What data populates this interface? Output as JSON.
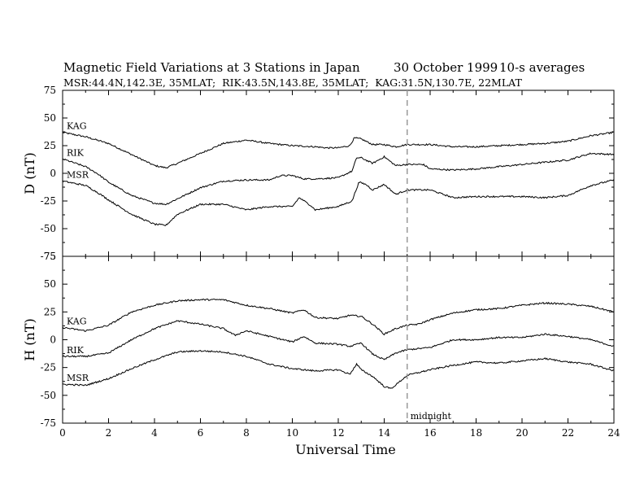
{
  "chart_data": [
    {
      "type": "line",
      "panel": "D",
      "title": "Magnetic Field Variations at 3 Stations in Japan",
      "date": "30 October 1999",
      "averaging": "10-s averages",
      "subtitle": "MSR:44.4N,142.3E, 35MLAT;  RIK:43.5N,143.8E, 35MLAT;  KAG:31.5N,130.7E, 22MLAT",
      "ylabel": "D (nT)",
      "xlabel": "",
      "ylim": [
        -75,
        75
      ],
      "xlim": [
        0,
        24
      ],
      "yticks": [
        "75",
        "50",
        "25",
        "0",
        "-25",
        "-50",
        "-75"
      ],
      "yticks_values": [
        75,
        50,
        25,
        0,
        -25,
        -50,
        -75
      ],
      "series": [
        {
          "name": "KAG",
          "x": [
            0,
            1,
            1.5,
            2,
            3,
            4,
            4.5,
            5,
            6,
            7,
            8,
            9,
            10,
            11,
            11.5,
            12,
            12.5,
            12.7,
            13,
            13.5,
            14,
            14.5,
            15,
            16,
            17,
            18,
            19,
            20,
            21,
            22,
            23,
            24
          ],
          "y": [
            37,
            33,
            30,
            27,
            17,
            7,
            5,
            9,
            18,
            27,
            30,
            27,
            25,
            24,
            23,
            23,
            25,
            32,
            31,
            26,
            26,
            24,
            26,
            26,
            24,
            24,
            25,
            26,
            27,
            29,
            34,
            37
          ]
        },
        {
          "name": "RIK",
          "x": [
            0,
            1,
            1.5,
            2,
            3,
            4,
            4.5,
            5,
            6,
            7,
            8,
            9,
            9.5,
            10,
            10.5,
            11,
            12,
            12.6,
            12.8,
            13,
            13.5,
            14,
            14.5,
            15,
            15.7,
            16,
            17,
            18,
            19,
            20,
            21,
            22,
            23,
            24
          ],
          "y": [
            13,
            6,
            0,
            -8,
            -20,
            -27,
            -28,
            -23,
            -13,
            -7,
            -6,
            -6,
            -2,
            -2,
            -5,
            -5,
            -4,
            2,
            14,
            14,
            9,
            15,
            7,
            8,
            8,
            4,
            3,
            4,
            6,
            8,
            10,
            12,
            18,
            17
          ]
        },
        {
          "name": "MSR",
          "x": [
            0,
            1,
            1.5,
            2,
            3,
            4,
            4.5,
            5,
            6,
            7,
            8,
            9,
            10,
            10.3,
            10.8,
            11,
            12,
            12.6,
            12.9,
            13.2,
            13.5,
            14,
            14.5,
            15,
            16,
            17,
            18,
            19,
            20,
            21,
            22,
            23,
            24
          ],
          "y": [
            -7,
            -11,
            -17,
            -24,
            -37,
            -46,
            -47,
            -37,
            -28,
            -28,
            -33,
            -30,
            -30,
            -22,
            -29,
            -33,
            -30,
            -25,
            -8,
            -10,
            -15,
            -10,
            -19,
            -15,
            -15,
            -22,
            -21,
            -21,
            -21,
            -22,
            -20,
            -11,
            -6
          ]
        }
      ]
    },
    {
      "type": "line",
      "panel": "H",
      "title": "",
      "ylabel": "H (nT)",
      "xlabel": "Universal Time",
      "ylim": [
        -75,
        75
      ],
      "xlim": [
        0,
        24
      ],
      "yticks": [
        "75",
        "50",
        "25",
        "0",
        "-25",
        "-50",
        "-75"
      ],
      "yticks_values": [
        75,
        50,
        25,
        0,
        -25,
        -50,
        -75
      ],
      "xticks": [
        "0",
        "2",
        "4",
        "6",
        "8",
        "10",
        "12",
        "14",
        "16",
        "18",
        "20",
        "22",
        "24"
      ],
      "xticks_values": [
        0,
        2,
        4,
        6,
        8,
        10,
        12,
        14,
        16,
        18,
        20,
        22,
        24
      ],
      "series": [
        {
          "name": "KAG",
          "x": [
            0,
            1,
            2,
            3,
            4,
            5,
            6,
            7,
            8,
            9,
            10,
            10.5,
            11,
            12,
            12.5,
            13,
            13.5,
            14,
            14.5,
            15,
            15.5,
            16,
            17,
            18,
            19,
            20,
            21,
            22,
            23,
            24
          ],
          "y": [
            11,
            8,
            13,
            25,
            31,
            35,
            36,
            36,
            31,
            28,
            24,
            27,
            20,
            19,
            22,
            21,
            14,
            5,
            10,
            13,
            14,
            18,
            24,
            27,
            28,
            31,
            33,
            32,
            30,
            25
          ]
        },
        {
          "name": "RIK",
          "x": [
            0,
            1,
            2,
            3,
            4,
            5,
            6,
            7,
            7.5,
            8,
            9,
            10,
            10.5,
            11,
            12,
            12.5,
            13,
            13.5,
            14,
            14.5,
            15,
            16,
            17,
            18,
            19,
            20,
            21,
            22,
            23,
            24
          ],
          "y": [
            -15,
            -15,
            -12,
            0,
            10,
            17,
            14,
            10,
            4,
            8,
            3,
            -2,
            3,
            -3,
            -4,
            -6,
            -3,
            -13,
            -18,
            -12,
            -9,
            -7,
            0,
            0,
            2,
            2,
            5,
            3,
            0,
            -6
          ]
        },
        {
          "name": "MSR",
          "x": [
            0,
            1,
            2,
            3,
            4,
            5,
            6,
            7,
            8,
            9,
            10,
            11,
            12,
            12.5,
            12.8,
            13,
            13.5,
            14,
            14.3,
            14.6,
            15,
            16,
            17,
            18,
            19,
            20,
            21,
            22,
            23,
            24
          ],
          "y": [
            -40,
            -41,
            -35,
            -26,
            -18,
            -11,
            -10,
            -11,
            -15,
            -22,
            -26,
            -28,
            -27,
            -31,
            -22,
            -27,
            -33,
            -42,
            -44,
            -39,
            -32,
            -27,
            -23,
            -20,
            -21,
            -19,
            -17,
            -20,
            -22,
            -28
          ]
        }
      ],
      "annotations": [
        {
          "text": "midnight",
          "x": 15
        }
      ]
    }
  ],
  "colors": {
    "trace": "#000000",
    "midnight_line": "#999999",
    "background": "#ffffff"
  },
  "x_marker": 15
}
